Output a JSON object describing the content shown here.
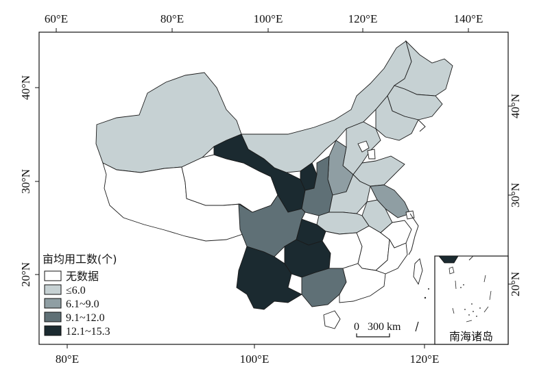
{
  "title": "",
  "axes": {
    "top_ticks": [
      "60°E",
      "80°E",
      "100°E",
      "120°E",
      "140°E"
    ],
    "bottom_ticks": [
      "80°E",
      "100°E",
      "120°E"
    ],
    "left_ticks": [
      "40°N",
      "30°N",
      "20°N"
    ],
    "right_ticks": [
      "40°N",
      "30°N",
      "20°N"
    ]
  },
  "legend": {
    "title": "亩均用工数(个)",
    "items": [
      {
        "label": "无数据",
        "color": "#ffffff"
      },
      {
        "label": "≤6.0",
        "color": "#c6d1d3"
      },
      {
        "label": "6.1~9.0",
        "color": "#8f9ea3"
      },
      {
        "label": "9.1~12.0",
        "color": "#5f7076"
      },
      {
        "label": "12.1~15.3",
        "color": "#1b2a30"
      }
    ]
  },
  "scale_bar": {
    "start": "0",
    "end": "300 km"
  },
  "inset": {
    "label": "南海诸岛"
  },
  "regions": [
    {
      "name": "Xinjiang",
      "class": "≤6.0"
    },
    {
      "name": "Xizang",
      "class": "无数据"
    },
    {
      "name": "Qinghai",
      "class": "无数据"
    },
    {
      "name": "Inner Mongolia",
      "class": "≤6.0"
    },
    {
      "name": "Heilongjiang",
      "class": "≤6.0"
    },
    {
      "name": "Jilin",
      "class": "≤6.0"
    },
    {
      "name": "Liaoning",
      "class": "≤6.0"
    },
    {
      "name": "Hebei",
      "class": "≤6.0"
    },
    {
      "name": "Beijing",
      "class": "无数据"
    },
    {
      "name": "Tianjin",
      "class": "无数据"
    },
    {
      "name": "Shandong",
      "class": "≤6.0"
    },
    {
      "name": "Shanxi",
      "class": "6.1~9.0"
    },
    {
      "name": "Henan",
      "class": "≤6.0"
    },
    {
      "name": "Shaanxi",
      "class": "9.1~12.0"
    },
    {
      "name": "Ningxia",
      "class": "12.1~15.3"
    },
    {
      "name": "Gansu",
      "class": "12.1~15.3"
    },
    {
      "name": "Sichuan",
      "class": "9.1~12.0"
    },
    {
      "name": "Chongqing",
      "class": "12.1~15.3"
    },
    {
      "name": "Yunnan",
      "class": "12.1~15.3"
    },
    {
      "name": "Guizhou",
      "class": "12.1~15.3"
    },
    {
      "name": "Guangxi",
      "class": "9.1~12.0"
    },
    {
      "name": "Hubei",
      "class": "≤6.0"
    },
    {
      "name": "Hunan",
      "class": "无数据"
    },
    {
      "name": "Jiangxi",
      "class": "无数据"
    },
    {
      "name": "Anhui",
      "class": "≤6.0"
    },
    {
      "name": "Jiangsu",
      "class": "6.1~9.0"
    },
    {
      "name": "Shanghai",
      "class": "无数据"
    },
    {
      "name": "Zhejiang",
      "class": "无数据"
    },
    {
      "name": "Fujian",
      "class": "无数据"
    },
    {
      "name": "Guangdong",
      "class": "无数据"
    },
    {
      "name": "Hainan",
      "class": "无数据"
    },
    {
      "name": "Taiwan",
      "class": "无数据"
    }
  ]
}
